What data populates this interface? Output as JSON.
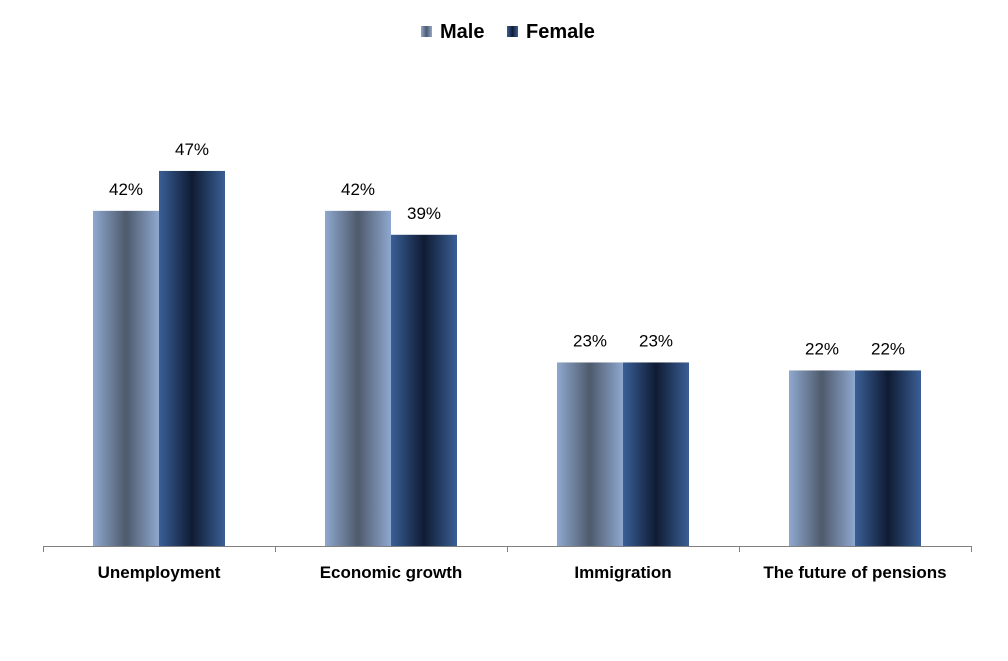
{
  "chart_data": {
    "type": "bar",
    "title": "",
    "xlabel": "",
    "ylabel": "",
    "categories": [
      "Unemployment",
      "Economic growth",
      "Immigration",
      "The future of pensions"
    ],
    "series": [
      {
        "name": "Male",
        "values": [
          42,
          42,
          23,
          22
        ],
        "labels": [
          "42%",
          "42%",
          "23%",
          "22%"
        ]
      },
      {
        "name": "Female",
        "values": [
          47,
          39,
          23,
          22
        ],
        "labels": [
          "47%",
          "39%",
          "23%",
          "22%"
        ]
      }
    ],
    "value_suffix": "%",
    "ylim": [
      0,
      50
    ],
    "grid": false,
    "legend_position": "top",
    "colors": {
      "Male": {
        "edge": "#8fa8cf",
        "mid": "#4e5a6c"
      },
      "Female": {
        "edge": "#3a5f96",
        "mid": "#0f1b33"
      },
      "axis": "#808080"
    }
  }
}
